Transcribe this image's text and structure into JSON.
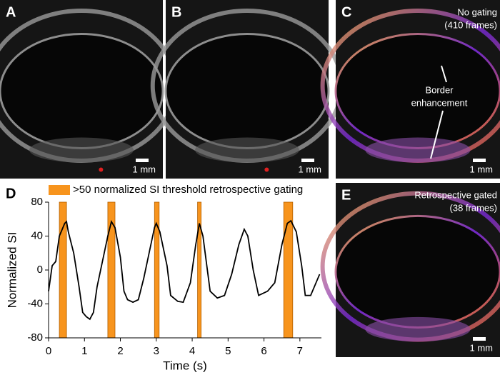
{
  "panels": [
    {
      "label": "A",
      "scale_label": "1 mm"
    },
    {
      "label": "B",
      "scale_label": "1 mm"
    },
    {
      "label": "C",
      "scale_label": "1 mm",
      "notes": [
        "No gating",
        "(410 frames)"
      ],
      "annotation": [
        "Border",
        "enhancement"
      ]
    },
    {
      "label": "E",
      "scale_label": "1 mm",
      "notes": [
        "Retrospective gated",
        "(38 frames)"
      ]
    }
  ],
  "chart_data": {
    "type": "line",
    "label": "D",
    "legend": ">50 normalized SI threshold retrospective gating",
    "gate_color": "#f7941d",
    "gates": [
      [
        0.3,
        0.5
      ],
      [
        1.65,
        1.85
      ],
      [
        2.95,
        3.08
      ],
      [
        4.15,
        4.25
      ],
      [
        6.55,
        6.8
      ]
    ],
    "xlabel": "Time (s)",
    "ylabel": "Normalized SI",
    "xlim": [
      0,
      7.6
    ],
    "ylim": [
      -80,
      80
    ],
    "xticks": [
      0,
      1,
      2,
      3,
      4,
      5,
      6,
      7
    ],
    "yticks": [
      -80,
      -40,
      0,
      40,
      80
    ],
    "series": [
      {
        "color": "#000000",
        "x": [
          0,
          0.1,
          0.2,
          0.3,
          0.4,
          0.45,
          0.5,
          0.55,
          0.7,
          0.85,
          0.95,
          1.05,
          1.15,
          1.25,
          1.35,
          1.5,
          1.65,
          1.75,
          1.85,
          2.0,
          2.1,
          2.2,
          2.35,
          2.5,
          2.65,
          2.8,
          2.95,
          3.0,
          3.1,
          3.3,
          3.4,
          3.6,
          3.75,
          3.95,
          4.1,
          4.2,
          4.3,
          4.5,
          4.7,
          4.9,
          5.1,
          5.3,
          5.45,
          5.55,
          5.7,
          5.85,
          6.1,
          6.3,
          6.5,
          6.65,
          6.75,
          6.9,
          7.05,
          7.15,
          7.3,
          7.45,
          7.55
        ],
        "values": [
          -25,
          5,
          10,
          40,
          50,
          55,
          57,
          45,
          20,
          -20,
          -50,
          -55,
          -58,
          -50,
          -20,
          10,
          40,
          57,
          50,
          15,
          -25,
          -35,
          -38,
          -35,
          -10,
          20,
          50,
          55,
          45,
          5,
          -30,
          -37,
          -38,
          -15,
          30,
          55,
          40,
          -25,
          -33,
          -30,
          -5,
          30,
          48,
          40,
          0,
          -30,
          -25,
          -15,
          30,
          55,
          58,
          45,
          5,
          -30,
          -30,
          -15,
          -5
        ]
      }
    ]
  }
}
